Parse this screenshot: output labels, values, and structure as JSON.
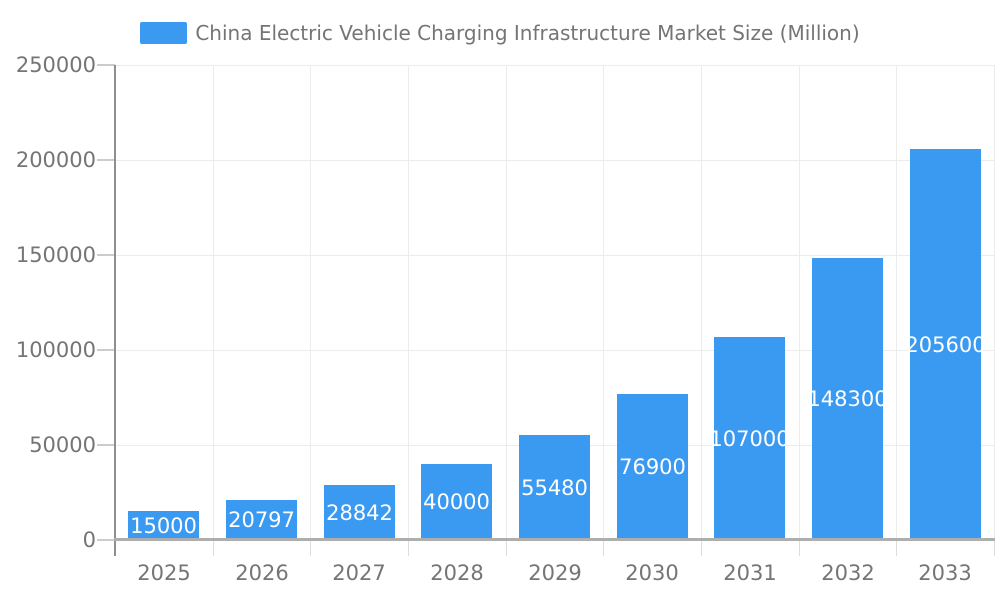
{
  "legend": {
    "label": "China Electric Vehicle Charging Infrastructure Market Size (Million)"
  },
  "chart_data": {
    "type": "bar",
    "title": "China Electric Vehicle Charging Infrastructure Market Size (Million)",
    "categories": [
      "2025",
      "2026",
      "2027",
      "2028",
      "2029",
      "2030",
      "2031",
      "2032",
      "2033"
    ],
    "values": [
      15000,
      20797,
      28842,
      40000,
      55480,
      76900,
      107000,
      148300,
      205600
    ],
    "xlabel": "",
    "ylabel": "",
    "ylim": [
      0,
      250000
    ],
    "yticks": [
      0,
      50000,
      100000,
      150000,
      200000,
      250000
    ],
    "grid": true,
    "legend_position": "top",
    "bar_color": "#3a99f0",
    "bar_label_color": "#ffffff",
    "axis_label_color": "#757575"
  }
}
